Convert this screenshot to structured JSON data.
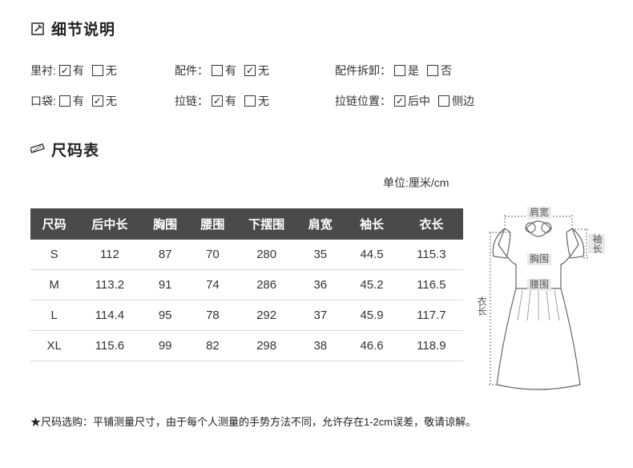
{
  "sections": {
    "details_title": "细节说明",
    "size_title": "尺码表"
  },
  "details": {
    "row1": {
      "lining": {
        "label": "里衬:",
        "opt1": "有",
        "opt2": "无",
        "checked": 1
      },
      "parts": {
        "label": "配件：",
        "opt1": "有",
        "opt2": "无",
        "checked": 2
      },
      "detach": {
        "label": "配件拆卸：",
        "opt1": "是",
        "opt2": "否",
        "checked": 0
      }
    },
    "row2": {
      "pocket": {
        "label": "口袋:",
        "opt1": "有",
        "opt2": "无",
        "checked": 2
      },
      "zipper": {
        "label": "拉链：",
        "opt1": "有",
        "opt2": "无",
        "checked": 1
      },
      "zip_pos": {
        "label": "拉链位置：",
        "opt1": "后中",
        "opt2": "侧边",
        "checked": 1
      }
    }
  },
  "unit_text": "单位:厘米/cm",
  "size_table": {
    "columns": [
      "尺码",
      "后中长",
      "胸围",
      "腰围",
      "下摆围",
      "肩宽",
      "袖长",
      "衣长"
    ],
    "rows": [
      [
        "S",
        "112",
        "87",
        "70",
        "280",
        "35",
        "44.5",
        "115.3"
      ],
      [
        "M",
        "113.2",
        "91",
        "74",
        "286",
        "36",
        "45.2",
        "116.5"
      ],
      [
        "L",
        "114.4",
        "95",
        "78",
        "292",
        "37",
        "45.9",
        "117.7"
      ],
      [
        "XL",
        "115.6",
        "99",
        "82",
        "298",
        "38",
        "46.6",
        "118.9"
      ]
    ],
    "col_widths": [
      "60",
      "80",
      "60",
      "60",
      "76",
      "60",
      "70",
      "80"
    ],
    "header_bg": "#4a4a4a",
    "header_fg": "#ffffff",
    "row_border": "#d9d9d9",
    "font_size": 15
  },
  "diagram_labels": {
    "shoulder": "肩宽",
    "sleeve_v": "袖长",
    "bust": "胸围",
    "waist": "腰围",
    "length_v": "衣长"
  },
  "footnote": "★尺码选购：平铺测量尺寸，由于每个人测量的手势方法不同，允许存在1-2cm误差，敬请谅解。"
}
